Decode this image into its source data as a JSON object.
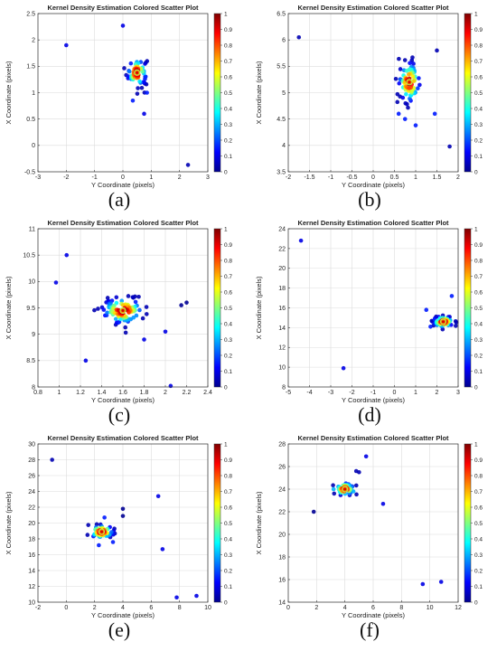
{
  "colorbar": {
    "ticks": [
      "0",
      "0.1",
      "0.2",
      "0.3",
      "0.4",
      "0.5",
      "0.6",
      "0.7",
      "0.8",
      "0.9",
      "1"
    ],
    "colormap": "jet"
  },
  "chart_data": [
    {
      "type": "scatter",
      "panel_label": "(a)",
      "title": "Kernel Density Estimation Colored Scatter Plot",
      "xlabel": "Y Coordinate (pixels)",
      "ylabel": "X Coordinate (pixels)",
      "xlim": [
        -3,
        3
      ],
      "ylim": [
        -0.5,
        2.5
      ],
      "xticks": [
        "-3",
        "-2",
        "-1",
        "0",
        "1",
        "2",
        "3"
      ],
      "yticks": [
        "-0.5",
        "0",
        "0.5",
        "1",
        "1.5",
        "2",
        "2.5"
      ],
      "grid": true,
      "cluster": {
        "cx": 0.5,
        "cy": 1.38,
        "sx": 0.18,
        "sy": 0.14,
        "n": 70
      },
      "points": [
        [
          -2.0,
          1.9,
          0.1
        ],
        [
          0.0,
          2.27,
          0.1
        ],
        [
          0.75,
          0.6,
          0.1
        ],
        [
          2.3,
          -0.37,
          0.05
        ],
        [
          0.35,
          0.85,
          0.15
        ],
        [
          0.85,
          1.0,
          0.15
        ]
      ]
    },
    {
      "type": "scatter",
      "panel_label": "(b)",
      "title": "Kernel Density Estimation Colored Scatter Plot",
      "xlabel": "Y Coordinate (pixels)",
      "ylabel": "X Coordinate (pixels)",
      "xlim": [
        -2,
        2
      ],
      "ylim": [
        3.5,
        6.5
      ],
      "xticks": [
        "-2",
        "-1.5",
        "-1",
        "-0.5",
        "0",
        "0.5",
        "1",
        "1.5",
        "2"
      ],
      "yticks": [
        "3.5",
        "4",
        "4.5",
        "5",
        "5.5",
        "6",
        "6.5"
      ],
      "grid": true,
      "cluster": {
        "cx": 0.85,
        "cy": 5.2,
        "sx": 0.13,
        "sy": 0.2,
        "n": 80
      },
      "points": [
        [
          -1.75,
          6.05,
          0.05
        ],
        [
          1.5,
          5.8,
          0.05
        ],
        [
          1.8,
          3.98,
          0.05
        ],
        [
          0.6,
          4.6,
          0.15
        ],
        [
          1.0,
          4.38,
          0.15
        ],
        [
          1.45,
          4.6,
          0.15
        ],
        [
          0.75,
          4.5,
          0.15
        ]
      ]
    },
    {
      "type": "scatter",
      "panel_label": "(c)",
      "title": "Kernel Density Estimation Colored Scatter Plot",
      "xlabel": "Y Coordinate (pixels)",
      "ylabel": "X Coordinate (pixels)",
      "xlim": [
        0.8,
        2.4
      ],
      "ylim": [
        8,
        11
      ],
      "xticks": [
        "0.8",
        "1",
        "1.2",
        "1.4",
        "1.6",
        "1.8",
        "2",
        "2.2",
        "2.4"
      ],
      "yticks": [
        "8",
        "8.5",
        "9",
        "9.5",
        "10",
        "10.5",
        "11"
      ],
      "grid": true,
      "cluster": {
        "cx": 1.6,
        "cy": 9.45,
        "sx": 0.1,
        "sy": 0.13,
        "n": 110
      },
      "points": [
        [
          1.07,
          10.5,
          0.1
        ],
        [
          0.97,
          9.98,
          0.1
        ],
        [
          1.25,
          8.5,
          0.1
        ],
        [
          2.05,
          8.02,
          0.1
        ],
        [
          2.0,
          9.05,
          0.1
        ],
        [
          1.8,
          8.9,
          0.1
        ],
        [
          2.15,
          9.55,
          0.02
        ],
        [
          2.2,
          9.6,
          0.02
        ]
      ]
    },
    {
      "type": "scatter",
      "panel_label": "(d)",
      "title": "Kernel Density Estimation Colored Scatter Plot",
      "xlabel": "Y Coordinate (pixels)",
      "ylabel": "X Coordinate (pixels)",
      "xlim": [
        -5,
        3
      ],
      "ylim": [
        8,
        24
      ],
      "xticks": [
        "-5",
        "-4",
        "-3",
        "-2",
        "-1",
        "0",
        "1",
        "2",
        "3"
      ],
      "yticks": [
        "8",
        "10",
        "12",
        "14",
        "16",
        "18",
        "20",
        "22",
        "24"
      ],
      "grid": true,
      "cluster": {
        "cx": 2.3,
        "cy": 14.6,
        "sx": 0.25,
        "sy": 0.3,
        "n": 70
      },
      "points": [
        [
          -4.4,
          22.8,
          0.1
        ],
        [
          -2.4,
          9.9,
          0.1
        ],
        [
          1.5,
          15.8,
          0.15
        ],
        [
          2.7,
          17.2,
          0.15
        ],
        [
          1.7,
          14.1,
          0.15
        ]
      ]
    },
    {
      "type": "scatter",
      "panel_label": "(e)",
      "title": "Kernel Density Estimation Colored Scatter Plot",
      "xlabel": "Y Coordinate (pixels)",
      "ylabel": "X Coordinate (pixels)",
      "xlim": [
        -2,
        10
      ],
      "ylim": [
        10,
        30
      ],
      "xticks": [
        "-2",
        "0",
        "2",
        "4",
        "6",
        "8",
        "10"
      ],
      "yticks": [
        "10",
        "12",
        "14",
        "16",
        "18",
        "20",
        "22",
        "24",
        "26",
        "28",
        "30"
      ],
      "grid": true,
      "cluster": {
        "cx": 2.5,
        "cy": 18.9,
        "sx": 0.45,
        "sy": 0.45,
        "n": 60
      },
      "points": [
        [
          -1.0,
          28.0,
          0.05
        ],
        [
          4.0,
          21.8,
          0.02
        ],
        [
          4.0,
          20.9,
          0.02
        ],
        [
          6.5,
          23.4,
          0.1
        ],
        [
          6.8,
          16.7,
          0.1
        ],
        [
          7.8,
          10.6,
          0.1
        ],
        [
          9.2,
          10.8,
          0.1
        ],
        [
          2.3,
          17.2,
          0.15
        ],
        [
          3.3,
          17.6,
          0.15
        ],
        [
          2.7,
          20.7,
          0.15
        ]
      ]
    },
    {
      "type": "scatter",
      "panel_label": "(f)",
      "title": "Kernel Density Estimation Colored Scatter Plot",
      "xlabel": "Y Coordinate (pixels)",
      "ylabel": "X Coordinate (pixels)",
      "xlim": [
        0,
        12
      ],
      "ylim": [
        14,
        28
      ],
      "xticks": [
        "0",
        "2",
        "4",
        "6",
        "8",
        "10",
        "12"
      ],
      "yticks": [
        "14",
        "16",
        "18",
        "20",
        "22",
        "24",
        "26",
        "28"
      ],
      "grid": true,
      "cluster": {
        "cx": 4.0,
        "cy": 24.0,
        "sx": 0.35,
        "sy": 0.3,
        "n": 55
      },
      "points": [
        [
          1.8,
          22.0,
          0.02
        ],
        [
          5.0,
          25.5,
          0.05
        ],
        [
          4.8,
          25.6,
          0.05
        ],
        [
          5.5,
          26.9,
          0.1
        ],
        [
          6.7,
          22.7,
          0.1
        ],
        [
          9.5,
          15.6,
          0.1
        ],
        [
          10.8,
          15.8,
          0.1
        ],
        [
          3.2,
          24.0,
          0.3
        ],
        [
          4.6,
          23.8,
          0.3
        ]
      ]
    }
  ]
}
